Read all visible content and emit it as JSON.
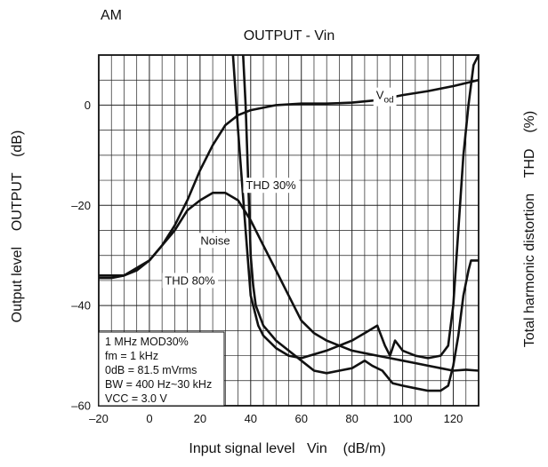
{
  "chart_data": {
    "type": "line",
    "mode_label": "AM",
    "title": "OUTPUT - Vin",
    "xlabel": "Input signal level   Vin    (dB/m)",
    "ylabel_left": "Output level    OUTPUT    (dB)",
    "ylabel_right": "Total harmonic distortion    THD    (%)",
    "xlim": [
      -20,
      130
    ],
    "ylim": [
      -60,
      10
    ],
    "x_ticks": [
      -20,
      0,
      20,
      40,
      60,
      80,
      100,
      120
    ],
    "x_tick_labels": [
      "–20",
      "0",
      "20",
      "40",
      "60",
      "80",
      "100",
      "120"
    ],
    "y_ticks": [
      0,
      -20,
      -40,
      -60
    ],
    "y_tick_labels": [
      "0",
      "–20",
      "–40",
      "–60"
    ],
    "grid": true,
    "conditions": [
      "1 MHz MOD30%",
      "fm = 1 kHz",
      "0dB = 81.5 mVrms",
      "BW = 400 Hz~30 kHz",
      "VCC = 3.0 V"
    ],
    "series": [
      {
        "name": "Vod",
        "label_main": "V",
        "label_sub": "od",
        "label_pos": [
          93,
          2
        ],
        "x": [
          -20,
          -10,
          0,
          5,
          10,
          15,
          20,
          25,
          30,
          35,
          40,
          50,
          60,
          70,
          80,
          90,
          100,
          110,
          120,
          130
        ],
        "y": [
          -34,
          -34,
          -31,
          -28,
          -24,
          -19,
          -13,
          -8,
          -4,
          -2,
          -1,
          0,
          0.3,
          0.3,
          0.5,
          1,
          2,
          2.8,
          3.8,
          5
        ]
      },
      {
        "name": "Noise",
        "label_pos": [
          26,
          -27
        ],
        "x": [
          -20,
          -15,
          -10,
          -5,
          0,
          5,
          10,
          15,
          20,
          25,
          30,
          35,
          40,
          45,
          50,
          55,
          60,
          65,
          70,
          75,
          80,
          85,
          90,
          95,
          100,
          105,
          110,
          115,
          120,
          125,
          130
        ],
        "y": [
          -34.5,
          -34.5,
          -34,
          -33,
          -31,
          -28,
          -25,
          -21,
          -19,
          -17.5,
          -17.5,
          -19,
          -23,
          -28,
          -33,
          -38,
          -43,
          -45.5,
          -47,
          -48,
          -49,
          -49.5,
          -50,
          -50.5,
          -51,
          -51.5,
          -52,
          -52.5,
          -53,
          -52.8,
          -53
        ]
      },
      {
        "name": "THD 30%",
        "label_pos": [
          48,
          -16
        ],
        "x": [
          33,
          35,
          38,
          40,
          43,
          45,
          50,
          55,
          60,
          70,
          80,
          85,
          90,
          93,
          95,
          97,
          100,
          105,
          110,
          115,
          118,
          120,
          122,
          124,
          126,
          128,
          130
        ],
        "y": [
          10,
          -5,
          -25,
          -38,
          -44,
          -46,
          -48.5,
          -50,
          -50.5,
          -49,
          -47,
          -45.5,
          -44,
          -48,
          -50,
          -47,
          -49,
          -50,
          -50.5,
          -50,
          -48,
          -40,
          -25,
          -10,
          0,
          8,
          10
        ]
      },
      {
        "name": "THD 80%",
        "label_pos": [
          16,
          -35
        ],
        "x": [
          37,
          38,
          39,
          40,
          41,
          42,
          45,
          50,
          55,
          60,
          65,
          70,
          75,
          80,
          85,
          88,
          92,
          96,
          100,
          105,
          110,
          115,
          118,
          120,
          122,
          124,
          126,
          127,
          128,
          130
        ],
        "y": [
          10,
          0,
          -15,
          -30,
          -36,
          -40,
          -44,
          -47,
          -49,
          -51,
          -53,
          -53.5,
          -53,
          -52.5,
          -51,
          -52,
          -53,
          -55.5,
          -56,
          -56.5,
          -57,
          -57,
          -56,
          -52,
          -46,
          -38,
          -33,
          -31,
          -31,
          -31
        ]
      }
    ]
  }
}
